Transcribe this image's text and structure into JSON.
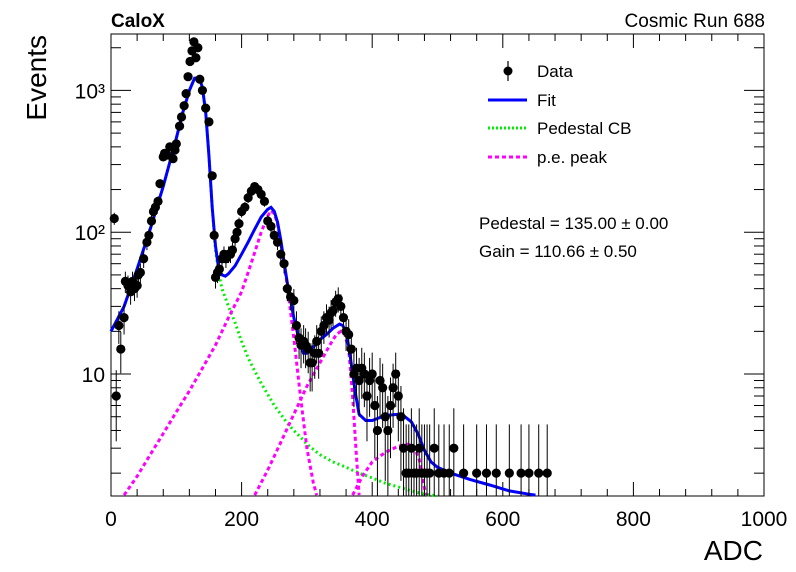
{
  "header": {
    "left_label": "CaloX",
    "right_label": "Cosmic Run 688"
  },
  "chart_data": {
    "type": "scatter",
    "xlabel": "ADC",
    "ylabel": "Events",
    "xlim": [
      0,
      1000
    ],
    "ylim": [
      1.38,
      2500
    ],
    "yscale": "log",
    "grid": false,
    "legend_position": "top-right",
    "x_ticks": [
      0,
      200,
      400,
      600,
      800,
      1000
    ],
    "y_ticks": [
      10,
      100,
      1000
    ],
    "y_tick_labels": [
      "10",
      "10²",
      "10³"
    ],
    "annotations": [
      "Pedestal = 135.00 ± 0.00",
      "Gain = 110.66 ± 0.50"
    ],
    "legend": [
      {
        "label": "Data",
        "style": "marker",
        "color": "#000000"
      },
      {
        "label": "Fit",
        "style": "solid",
        "color": "#0000ff"
      },
      {
        "label": "Pedestal CB",
        "style": "dotted",
        "color": "#00ee00"
      },
      {
        "label": "p.e. peak",
        "style": "dashed",
        "color": "#ff00ff"
      }
    ],
    "series": [
      {
        "name": "Data",
        "color": "#000000",
        "points": [
          [
            5,
            125
          ],
          [
            8,
            7
          ],
          [
            12,
            22
          ],
          [
            15,
            15
          ],
          [
            20,
            25
          ],
          [
            22,
            45
          ],
          [
            26,
            42
          ],
          [
            30,
            38
          ],
          [
            33,
            45
          ],
          [
            36,
            40
          ],
          [
            40,
            42
          ],
          [
            42,
            50
          ],
          [
            45,
            52
          ],
          [
            50,
            65
          ],
          [
            55,
            85
          ],
          [
            58,
            95
          ],
          [
            62,
            120
          ],
          [
            65,
            140
          ],
          [
            68,
            150
          ],
          [
            72,
            165
          ],
          [
            75,
            220
          ],
          [
            80,
            340
          ],
          [
            82,
            360
          ],
          [
            86,
            350
          ],
          [
            90,
            400
          ],
          [
            95,
            330
          ],
          [
            98,
            380
          ],
          [
            100,
            420
          ],
          [
            105,
            560
          ],
          [
            108,
            650
          ],
          [
            112,
            780
          ],
          [
            115,
            950
          ],
          [
            118,
            1250
          ],
          [
            121,
            1600
          ],
          [
            124,
            1900
          ],
          [
            127,
            2200
          ],
          [
            130,
            1700
          ],
          [
            133,
            2000
          ],
          [
            136,
            1200
          ],
          [
            140,
            1000
          ],
          [
            145,
            750
          ],
          [
            150,
            600
          ],
          [
            155,
            250
          ],
          [
            158,
            95
          ],
          [
            160,
            48
          ],
          [
            163,
            52
          ],
          [
            166,
            55
          ],
          [
            170,
            65
          ],
          [
            173,
            70
          ],
          [
            176,
            65
          ],
          [
            180,
            70
          ],
          [
            183,
            70
          ],
          [
            186,
            75
          ],
          [
            190,
            90
          ],
          [
            193,
            100
          ],
          [
            196,
            115
          ],
          [
            200,
            140
          ],
          [
            205,
            150
          ],
          [
            210,
            175
          ],
          [
            215,
            195
          ],
          [
            220,
            210
          ],
          [
            225,
            200
          ],
          [
            230,
            185
          ],
          [
            235,
            165
          ],
          [
            240,
            120
          ],
          [
            245,
            110
          ],
          [
            250,
            95
          ],
          [
            255,
            85
          ],
          [
            260,
            70
          ],
          [
            265,
            60
          ],
          [
            270,
            40
          ],
          [
            275,
            35
          ],
          [
            280,
            33
          ],
          [
            284,
            22
          ],
          [
            288,
            18
          ],
          [
            291,
            16
          ],
          [
            295,
            17
          ],
          [
            298,
            16
          ],
          [
            302,
            15
          ],
          [
            305,
            12
          ],
          [
            308,
            12
          ],
          [
            312,
            14
          ],
          [
            315,
            17
          ],
          [
            318,
            14
          ],
          [
            322,
            20
          ],
          [
            326,
            22
          ],
          [
            330,
            25
          ],
          [
            334,
            24
          ],
          [
            337,
            27
          ],
          [
            340,
            28
          ],
          [
            344,
            32
          ],
          [
            348,
            34
          ],
          [
            352,
            30
          ],
          [
            356,
            25
          ],
          [
            360,
            20
          ],
          [
            364,
            19
          ],
          [
            368,
            15
          ],
          [
            372,
            10
          ],
          [
            376,
            11
          ],
          [
            380,
            9
          ],
          [
            384,
            11
          ],
          [
            388,
            10
          ],
          [
            392,
            7
          ],
          [
            396,
            9
          ],
          [
            400,
            10
          ],
          [
            404,
            6
          ],
          [
            408,
            4
          ],
          [
            412,
            9
          ],
          [
            416,
            8
          ],
          [
            420,
            5
          ],
          [
            424,
            4
          ],
          [
            428,
            6
          ],
          [
            432,
            8
          ],
          [
            436,
            10
          ],
          [
            440,
            7
          ],
          [
            444,
            5
          ],
          [
            448,
            3
          ],
          [
            452,
            2
          ],
          [
            456,
            2
          ],
          [
            460,
            3
          ],
          [
            464,
            2
          ],
          [
            468,
            2
          ],
          [
            472,
            3
          ],
          [
            476,
            2
          ],
          [
            480,
            2
          ],
          [
            484,
            2
          ],
          [
            488,
            2
          ],
          [
            495,
            3
          ],
          [
            502,
            2
          ],
          [
            510,
            2
          ],
          [
            518,
            2
          ],
          [
            525,
            3
          ],
          [
            540,
            2
          ],
          [
            560,
            2
          ],
          [
            575,
            2
          ],
          [
            590,
            2
          ],
          [
            610,
            2
          ],
          [
            628,
            2
          ],
          [
            640,
            2
          ],
          [
            655,
            2
          ],
          [
            668,
            2
          ]
        ]
      },
      {
        "name": "Fit",
        "color": "#0000ff",
        "points": [
          [
            0,
            20
          ],
          [
            20,
            30
          ],
          [
            40,
            55
          ],
          [
            60,
            105
          ],
          [
            80,
            210
          ],
          [
            100,
            460
          ],
          [
            110,
            700
          ],
          [
            120,
            1000
          ],
          [
            128,
            1220
          ],
          [
            135,
            1230
          ],
          [
            140,
            1050
          ],
          [
            145,
            700
          ],
          [
            150,
            350
          ],
          [
            155,
            150
          ],
          [
            160,
            80
          ],
          [
            165,
            55
          ],
          [
            170,
            50
          ],
          [
            175,
            49
          ],
          [
            180,
            51
          ],
          [
            190,
            58
          ],
          [
            200,
            70
          ],
          [
            210,
            85
          ],
          [
            220,
            105
          ],
          [
            230,
            128
          ],
          [
            240,
            145
          ],
          [
            245,
            150
          ],
          [
            250,
            140
          ],
          [
            255,
            118
          ],
          [
            260,
            88
          ],
          [
            265,
            62
          ],
          [
            270,
            44
          ],
          [
            280,
            25
          ],
          [
            290,
            16
          ],
          [
            295,
            14
          ],
          [
            300,
            14
          ],
          [
            310,
            15.5
          ],
          [
            320,
            17.5
          ],
          [
            330,
            19
          ],
          [
            340,
            21
          ],
          [
            350,
            22.5
          ],
          [
            355,
            22
          ],
          [
            360,
            19.5
          ],
          [
            365,
            15
          ],
          [
            370,
            10
          ],
          [
            375,
            7
          ],
          [
            380,
            5.2
          ],
          [
            390,
            4.7
          ],
          [
            400,
            4.7
          ],
          [
            410,
            4.9
          ],
          [
            420,
            5.1
          ],
          [
            440,
            5.2
          ],
          [
            450,
            5
          ],
          [
            460,
            4.6
          ],
          [
            470,
            3.8
          ],
          [
            480,
            2.9
          ],
          [
            490,
            2.4
          ],
          [
            500,
            2.2
          ],
          [
            520,
            2.0
          ],
          [
            550,
            1.8
          ],
          [
            580,
            1.65
          ],
          [
            610,
            1.5
          ],
          [
            640,
            1.42
          ],
          [
            650,
            1.4
          ]
        ]
      },
      {
        "name": "Pedestal CB",
        "color": "#00ee00",
        "points": [
          [
            0,
            20
          ],
          [
            20,
            30
          ],
          [
            40,
            55
          ],
          [
            60,
            105
          ],
          [
            80,
            210
          ],
          [
            100,
            460
          ],
          [
            110,
            700
          ],
          [
            120,
            1000
          ],
          [
            128,
            1220
          ],
          [
            135,
            1230
          ],
          [
            140,
            1050
          ],
          [
            145,
            700
          ],
          [
            150,
            350
          ],
          [
            155,
            150
          ],
          [
            160,
            75
          ],
          [
            165,
            52
          ],
          [
            170,
            40
          ],
          [
            180,
            30
          ],
          [
            190,
            23
          ],
          [
            200,
            17
          ],
          [
            210,
            13
          ],
          [
            220,
            10.5
          ],
          [
            230,
            8.6
          ],
          [
            240,
            7.2
          ],
          [
            250,
            6.0
          ],
          [
            260,
            5.2
          ],
          [
            270,
            4.5
          ],
          [
            280,
            4.0
          ],
          [
            290,
            3.6
          ],
          [
            300,
            3.2
          ],
          [
            320,
            2.7
          ],
          [
            340,
            2.4
          ],
          [
            360,
            2.2
          ],
          [
            380,
            2.0
          ],
          [
            400,
            1.85
          ],
          [
            420,
            1.7
          ],
          [
            440,
            1.6
          ],
          [
            460,
            1.5
          ],
          [
            480,
            1.42
          ],
          [
            500,
            1.38
          ]
        ]
      },
      {
        "name": "p.e. peak",
        "color": "#ff00ff",
        "points": [
          [
            [
              20,
              1.4
            ],
            [
              40,
              1.9
            ],
            [
              60,
              2.7
            ],
            [
              80,
              3.8
            ],
            [
              100,
              5.4
            ],
            [
              120,
              7.6
            ],
            [
              140,
              11
            ],
            [
              160,
              16
            ],
            [
              180,
              25
            ],
            [
              200,
              38
            ],
            [
              210,
              52
            ],
            [
              220,
              72
            ],
            [
              230,
              100
            ],
            [
              240,
              130
            ],
            [
              245,
              142
            ],
            [
              250,
              135
            ],
            [
              255,
              115
            ],
            [
              260,
              85
            ],
            [
              270,
              42
            ],
            [
              280,
              18
            ],
            [
              290,
              7
            ],
            [
              300,
              3
            ],
            [
              310,
              1.7
            ],
            [
              315,
              1.4
            ]
          ],
          [
            [
              220,
              1.4
            ],
            [
              240,
              2.1
            ],
            [
              260,
              3.3
            ],
            [
              280,
              5.2
            ],
            [
              300,
              8.2
            ],
            [
              320,
              12
            ],
            [
              335,
              16
            ],
            [
              345,
              19
            ],
            [
              352,
              20
            ],
            [
              358,
              19
            ],
            [
              364,
              15
            ],
            [
              370,
              7
            ],
            [
              375,
              3
            ],
            [
              380,
              1.4
            ]
          ],
          [
            [
              370,
              1.4
            ],
            [
              385,
              1.9
            ],
            [
              400,
              2.4
            ],
            [
              420,
              2.8
            ],
            [
              440,
              3.1
            ],
            [
              455,
              3.2
            ],
            [
              465,
              3.0
            ],
            [
              472,
              2.5
            ],
            [
              478,
              1.8
            ],
            [
              482,
              1.4
            ]
          ]
        ]
      }
    ]
  }
}
